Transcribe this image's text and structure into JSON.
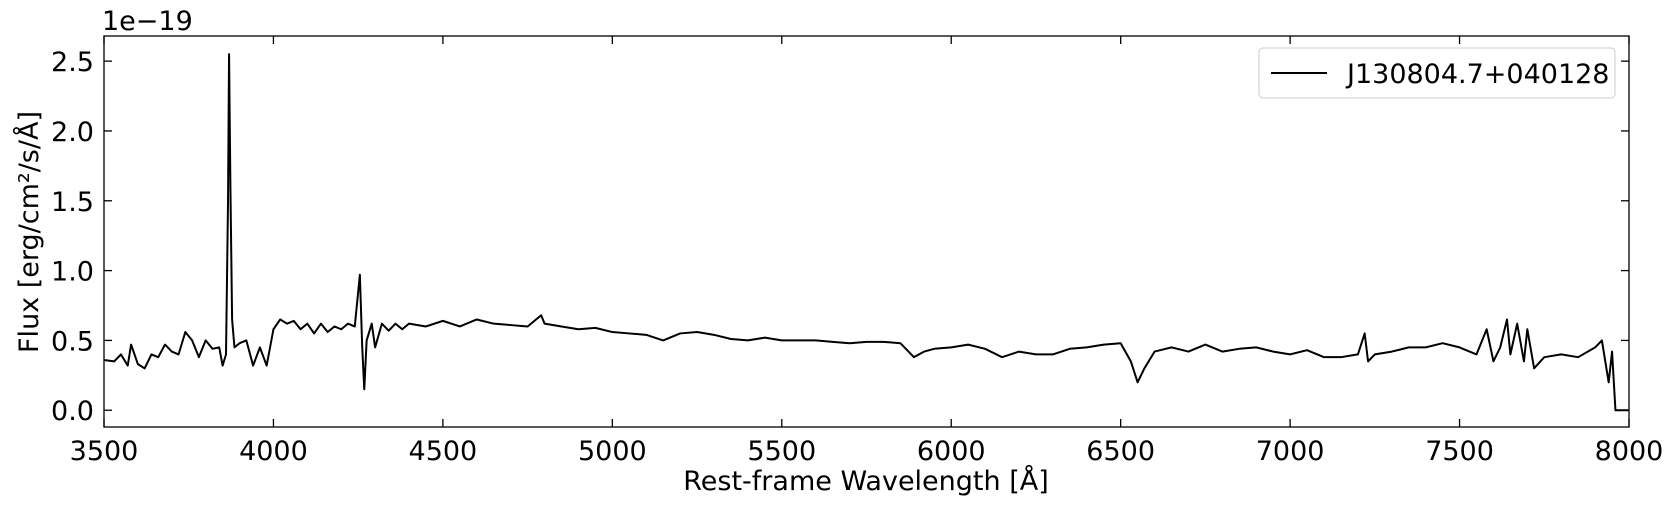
{
  "chart_data": {
    "type": "line",
    "offset_label": "1e−19",
    "xlabel": "Rest-frame Wavelength [Å]",
    "ylabel": "Flux [erg/cm²/s/Å]",
    "xlim": [
      3500,
      8000
    ],
    "ylim": [
      -0.12,
      2.68
    ],
    "xticks": [
      3500,
      4000,
      4500,
      5000,
      5500,
      6000,
      6500,
      7000,
      7500,
      8000
    ],
    "yticks": [
      {
        "value": 0,
        "label": "0.0"
      },
      0.5,
      {
        "value": 1,
        "label": "1.0"
      },
      1.5,
      {
        "value": 2,
        "label": "2.0"
      },
      2.5
    ],
    "legend_position": "upper right",
    "x": [
      3500,
      3530,
      3550,
      3570,
      3580,
      3600,
      3620,
      3640,
      3660,
      3680,
      3700,
      3720,
      3740,
      3760,
      3780,
      3800,
      3820,
      3840,
      3850,
      3860,
      3866,
      3869,
      3873,
      3878,
      3885,
      3900,
      3920,
      3940,
      3960,
      3980,
      4000,
      4020,
      4040,
      4060,
      4080,
      4100,
      4120,
      4140,
      4160,
      4180,
      4200,
      4220,
      4240,
      4255,
      4262,
      4268,
      4275,
      4290,
      4300,
      4320,
      4340,
      4360,
      4380,
      4400,
      4450,
      4500,
      4550,
      4600,
      4650,
      4700,
      4750,
      4790,
      4800,
      4850,
      4900,
      4950,
      5000,
      5050,
      5100,
      5150,
      5200,
      5250,
      5300,
      5350,
      5400,
      5450,
      5500,
      5550,
      5600,
      5650,
      5700,
      5750,
      5800,
      5850,
      5890,
      5920,
      5950,
      6000,
      6050,
      6100,
      6150,
      6200,
      6250,
      6300,
      6350,
      6400,
      6450,
      6500,
      6530,
      6550,
      6570,
      6600,
      6650,
      6700,
      6750,
      6800,
      6850,
      6900,
      6950,
      7000,
      7050,
      7100,
      7150,
      7200,
      7220,
      7230,
      7250,
      7300,
      7350,
      7400,
      7450,
      7500,
      7550,
      7580,
      7600,
      7620,
      7640,
      7650,
      7670,
      7690,
      7700,
      7720,
      7750,
      7800,
      7850,
      7900,
      7920,
      7940,
      7950,
      7960,
      8000
    ],
    "series": [
      {
        "name": "J130804.7+040128",
        "color": "#000000",
        "values": [
          0.36,
          0.35,
          0.4,
          0.32,
          0.47,
          0.33,
          0.3,
          0.4,
          0.38,
          0.47,
          0.42,
          0.4,
          0.56,
          0.5,
          0.38,
          0.5,
          0.44,
          0.45,
          0.32,
          0.4,
          1.5,
          2.55,
          1.6,
          0.65,
          0.45,
          0.48,
          0.5,
          0.32,
          0.45,
          0.32,
          0.58,
          0.65,
          0.62,
          0.64,
          0.58,
          0.62,
          0.55,
          0.62,
          0.56,
          0.6,
          0.58,
          0.62,
          0.6,
          0.97,
          0.45,
          0.15,
          0.5,
          0.62,
          0.45,
          0.62,
          0.57,
          0.62,
          0.58,
          0.62,
          0.6,
          0.64,
          0.6,
          0.65,
          0.62,
          0.61,
          0.6,
          0.68,
          0.62,
          0.6,
          0.58,
          0.59,
          0.56,
          0.55,
          0.54,
          0.5,
          0.55,
          0.56,
          0.54,
          0.51,
          0.5,
          0.52,
          0.5,
          0.5,
          0.5,
          0.49,
          0.48,
          0.49,
          0.49,
          0.48,
          0.38,
          0.42,
          0.44,
          0.45,
          0.47,
          0.44,
          0.38,
          0.42,
          0.4,
          0.4,
          0.44,
          0.45,
          0.47,
          0.48,
          0.35,
          0.2,
          0.3,
          0.42,
          0.45,
          0.42,
          0.47,
          0.42,
          0.44,
          0.45,
          0.42,
          0.4,
          0.43,
          0.38,
          0.38,
          0.4,
          0.55,
          0.35,
          0.4,
          0.42,
          0.45,
          0.45,
          0.48,
          0.45,
          0.4,
          0.58,
          0.35,
          0.45,
          0.65,
          0.4,
          0.62,
          0.35,
          0.58,
          0.3,
          0.38,
          0.4,
          0.38,
          0.45,
          0.5,
          0.2,
          0.42,
          0.0,
          0.0
        ]
      }
    ]
  }
}
